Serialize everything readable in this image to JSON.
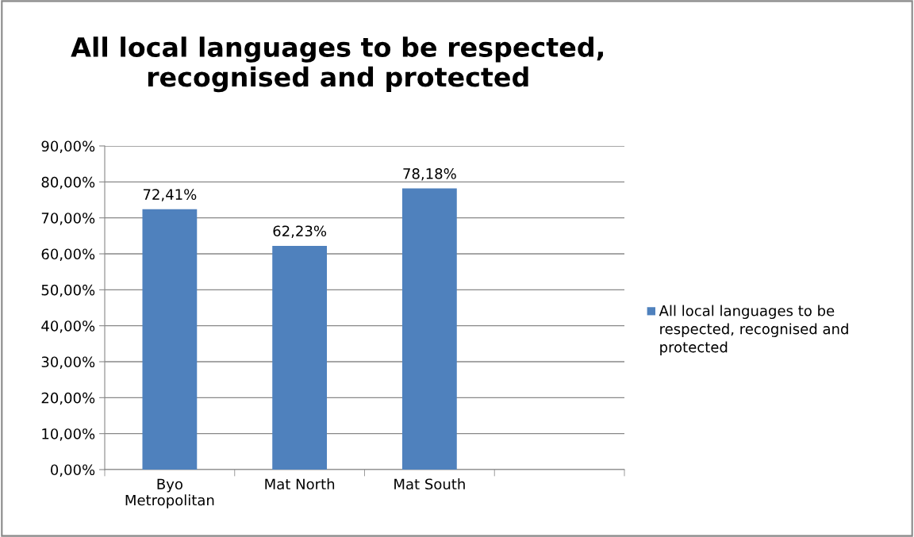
{
  "chart_data": {
    "type": "bar",
    "title": "All local languages to be respected, recognised and protected",
    "categories": [
      "Byo\nMetropolitan",
      "Mat North",
      "Mat South",
      null
    ],
    "series": [
      {
        "name": "All local languages to be respected, recognised and protected",
        "color": "#4f81bd",
        "values": [
          72.41,
          62.23,
          78.18,
          null
        ],
        "value_labels": [
          "72,41%",
          "62,23%",
          "78,18%",
          null
        ]
      }
    ],
    "ylim": [
      0,
      90
    ],
    "yticks": [
      {
        "value": 0,
        "label": "0,00%"
      },
      {
        "value": 10,
        "label": "10,00%"
      },
      {
        "value": 20,
        "label": "20,00%"
      },
      {
        "value": 30,
        "label": "30,00%"
      },
      {
        "value": 40,
        "label": "40,00%"
      },
      {
        "value": 50,
        "label": "50,00%"
      },
      {
        "value": 60,
        "label": "60,00%"
      },
      {
        "value": 70,
        "label": "70,00%"
      },
      {
        "value": 80,
        "label": "80,00%"
      },
      {
        "value": 90,
        "label": "90,00%"
      }
    ],
    "grid": "y",
    "legend": "right"
  }
}
